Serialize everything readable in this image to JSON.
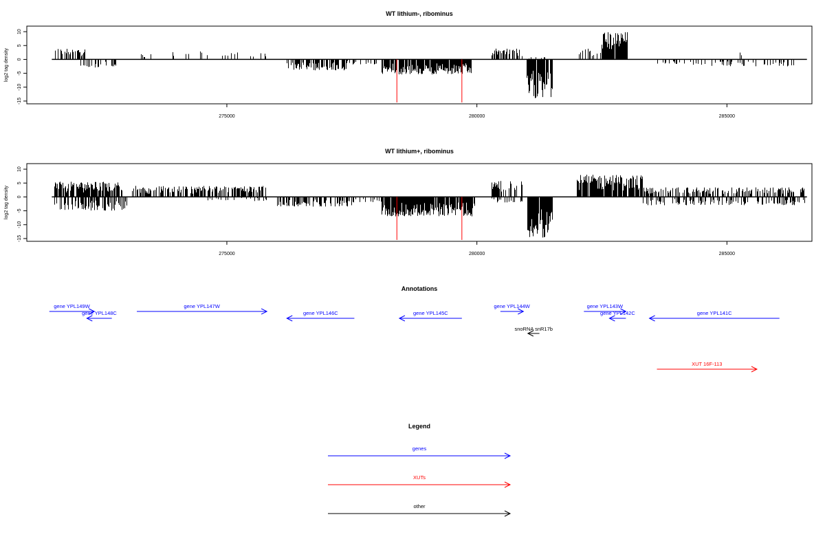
{
  "chart_data": [
    {
      "type": "bar",
      "title": "WT lithium-, ribominus",
      "xlabel": "",
      "ylabel": "log2 tag density",
      "ylim": [
        -16,
        12
      ],
      "xlim": [
        271000,
        286700
      ],
      "x_ticks": [
        "275000",
        "280000",
        "285000"
      ],
      "x_tick_values": [
        275000,
        280000,
        285000
      ],
      "y_ticks": [
        "10",
        "5",
        "0",
        "-5",
        "-10",
        "-15"
      ],
      "y_tick_values": [
        10,
        5,
        0,
        -5,
        -10,
        -15
      ],
      "baseline": [
        271500,
        286600
      ],
      "markers_red": [
        278400,
        279700
      ],
      "marker_color": "#ff0000",
      "bar_color": "#000000",
      "series_regions": [
        {
          "from": 271550,
          "to": 272150,
          "amp": 4,
          "sign": 1,
          "density": 0.5
        },
        {
          "from": 272000,
          "to": 272800,
          "amp": 3,
          "sign": -1,
          "density": 0.4
        },
        {
          "from": 273200,
          "to": 273700,
          "amp": 2,
          "sign": 1,
          "density": 0.15
        },
        {
          "from": 273900,
          "to": 274800,
          "amp": 3,
          "sign": 1,
          "density": 0.15
        },
        {
          "from": 274900,
          "to": 275800,
          "amp": 2.5,
          "sign": 1,
          "density": 0.15
        },
        {
          "from": 276200,
          "to": 277400,
          "amp": 4,
          "sign": -1,
          "density": 0.6
        },
        {
          "from": 277400,
          "to": 278100,
          "amp": 2,
          "sign": -1,
          "density": 0.2
        },
        {
          "from": 278100,
          "to": 279900,
          "amp": 5.5,
          "sign": -1,
          "density": 0.9
        },
        {
          "from": 280300,
          "to": 280900,
          "amp": 4,
          "sign": 1,
          "density": 0.5
        },
        {
          "from": 281000,
          "to": 281500,
          "amp": 14,
          "sign": -1,
          "density": 0.95
        },
        {
          "from": 281000,
          "to": 281500,
          "amp": 1,
          "sign": 1,
          "density": 0.2
        },
        {
          "from": 282000,
          "to": 282500,
          "amp": 5,
          "sign": 1,
          "density": 0.5
        },
        {
          "from": 282500,
          "to": 283000,
          "amp": 10,
          "sign": 1,
          "density": 0.95
        },
        {
          "from": 283500,
          "to": 284500,
          "amp": 2,
          "sign": -1,
          "density": 0.15
        },
        {
          "from": 284500,
          "to": 286400,
          "amp": 2.5,
          "sign": -1,
          "density": 0.2
        },
        {
          "from": 285200,
          "to": 285350,
          "amp": 3.5,
          "sign": 1,
          "density": 0.5
        }
      ]
    },
    {
      "type": "bar",
      "title": "WT lithium+, ribominus",
      "xlabel": "",
      "ylabel": "log2 tag density",
      "ylim": [
        -16,
        12
      ],
      "xlim": [
        271000,
        286700
      ],
      "x_ticks": [
        "275000",
        "280000",
        "285000"
      ],
      "x_tick_values": [
        275000,
        280000,
        285000
      ],
      "y_ticks": [
        "10",
        "5",
        "0",
        "-5",
        "-10",
        "-15"
      ],
      "y_tick_values": [
        10,
        5,
        0,
        -5,
        -10,
        -15
      ],
      "baseline": [
        271500,
        286600
      ],
      "markers_red": [
        278400,
        279700
      ],
      "marker_color": "#ff0000",
      "bar_color": "#000000",
      "series_regions": [
        {
          "from": 271550,
          "to": 272900,
          "amp": 5.5,
          "sign": 1,
          "density": 0.8
        },
        {
          "from": 271550,
          "to": 273000,
          "amp": 5,
          "sign": -1,
          "density": 0.6
        },
        {
          "from": 273100,
          "to": 275800,
          "amp": 4,
          "sign": 1,
          "density": 0.6
        },
        {
          "from": 274500,
          "to": 275800,
          "amp": 1.5,
          "sign": -1,
          "density": 0.2
        },
        {
          "from": 276000,
          "to": 277500,
          "amp": 3.5,
          "sign": -1,
          "density": 0.6
        },
        {
          "from": 277500,
          "to": 278100,
          "amp": 2,
          "sign": -1,
          "density": 0.3
        },
        {
          "from": 278100,
          "to": 279950,
          "amp": 7,
          "sign": -1,
          "density": 0.95
        },
        {
          "from": 280300,
          "to": 280900,
          "amp": 6,
          "sign": 1,
          "density": 0.6
        },
        {
          "from": 280300,
          "to": 280900,
          "amp": 2,
          "sign": -1,
          "density": 0.3
        },
        {
          "from": 281000,
          "to": 281500,
          "amp": 15,
          "sign": -1,
          "density": 0.95
        },
        {
          "from": 282000,
          "to": 283300,
          "amp": 8,
          "sign": 1,
          "density": 0.9
        },
        {
          "from": 283300,
          "to": 286550,
          "amp": 3.5,
          "sign": 1,
          "density": 0.5
        },
        {
          "from": 283300,
          "to": 286550,
          "amp": 3,
          "sign": -1,
          "density": 0.4
        }
      ]
    }
  ],
  "annotations": {
    "title": "Annotations",
    "items": [
      {
        "label": "gene YPL149W",
        "from": 271450,
        "to": 272350,
        "dir": "right",
        "color": "#0000ff",
        "row": 0
      },
      {
        "label": "gene YPL148C",
        "from": 272200,
        "to": 272700,
        "dir": "left",
        "color": "#0000ff",
        "row": 1
      },
      {
        "label": "gene YPL147W",
        "from": 273200,
        "to": 275800,
        "dir": "right",
        "color": "#0000ff",
        "row": 0
      },
      {
        "label": "gene YPL146C",
        "from": 276200,
        "to": 277550,
        "dir": "left",
        "color": "#0000ff",
        "row": 1
      },
      {
        "label": "gene YPL145C",
        "from": 278450,
        "to": 279700,
        "dir": "left",
        "color": "#0000ff",
        "row": 1
      },
      {
        "label": "gene YPL144W",
        "from": 280470,
        "to": 280930,
        "dir": "right",
        "color": "#0000ff",
        "row": 0
      },
      {
        "label": "gene YPL143W",
        "from": 282140,
        "to": 282980,
        "dir": "right",
        "color": "#0000ff",
        "row": 0
      },
      {
        "label": "gene YPL142C",
        "from": 282650,
        "to": 282980,
        "dir": "left",
        "color": "#0000ff",
        "row": 1
      },
      {
        "label": "gene YPL141C",
        "from": 283450,
        "to": 286050,
        "dir": "left",
        "color": "#0000ff",
        "row": 1
      },
      {
        "label": "snoRNA snR17b",
        "from": 281020,
        "to": 281250,
        "dir": "left",
        "color": "#000000",
        "row": 2
      },
      {
        "label": "XUT 16F-113",
        "from": 283600,
        "to": 285600,
        "dir": "right",
        "color": "#ff0000",
        "row": 3
      }
    ]
  },
  "legend": {
    "title": "Legend",
    "entries": [
      {
        "label": "genes",
        "color": "#0000ff"
      },
      {
        "label": "XUTs",
        "color": "#ff0000"
      },
      {
        "label": "other",
        "color": "#000000"
      }
    ]
  }
}
